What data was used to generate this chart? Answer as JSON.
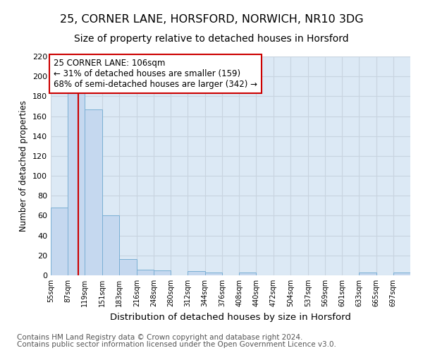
{
  "title1": "25, CORNER LANE, HORSFORD, NORWICH, NR10 3DG",
  "title2": "Size of property relative to detached houses in Horsford",
  "xlabel": "Distribution of detached houses by size in Horsford",
  "ylabel": "Number of detached properties",
  "bin_labels": [
    "55sqm",
    "87sqm",
    "119sqm",
    "151sqm",
    "183sqm",
    "216sqm",
    "248sqm",
    "280sqm",
    "312sqm",
    "344sqm",
    "376sqm",
    "408sqm",
    "440sqm",
    "472sqm",
    "504sqm",
    "537sqm",
    "569sqm",
    "601sqm",
    "633sqm",
    "665sqm",
    "697sqm"
  ],
  "bar_heights": [
    68,
    183,
    167,
    60,
    16,
    6,
    5,
    0,
    4,
    3,
    0,
    3,
    0,
    0,
    0,
    0,
    0,
    0,
    3,
    0,
    3
  ],
  "bin_edges": [
    55,
    87,
    119,
    151,
    183,
    216,
    248,
    280,
    312,
    344,
    376,
    408,
    440,
    472,
    504,
    537,
    569,
    601,
    633,
    665,
    697,
    729
  ],
  "bar_color": "#c5d8ef",
  "bar_edge_color": "#7aafd4",
  "property_line_x": 106,
  "property_line_color": "#cc0000",
  "annotation_text": "25 CORNER LANE: 106sqm\n← 31% of detached houses are smaller (159)\n68% of semi-detached houses are larger (342) →",
  "annotation_box_color": "#ffffff",
  "annotation_box_edge": "#cc0000",
  "grid_color": "#c8d4e0",
  "plot_bg_color": "#dce9f5",
  "ylim": [
    0,
    220
  ],
  "yticks": [
    0,
    20,
    40,
    60,
    80,
    100,
    120,
    140,
    160,
    180,
    200,
    220
  ],
  "footer1": "Contains HM Land Registry data © Crown copyright and database right 2024.",
  "footer2": "Contains public sector information licensed under the Open Government Licence v3.0.",
  "title1_fontsize": 11.5,
  "title2_fontsize": 10,
  "annotation_fontsize": 8.5,
  "footer_fontsize": 7.5
}
